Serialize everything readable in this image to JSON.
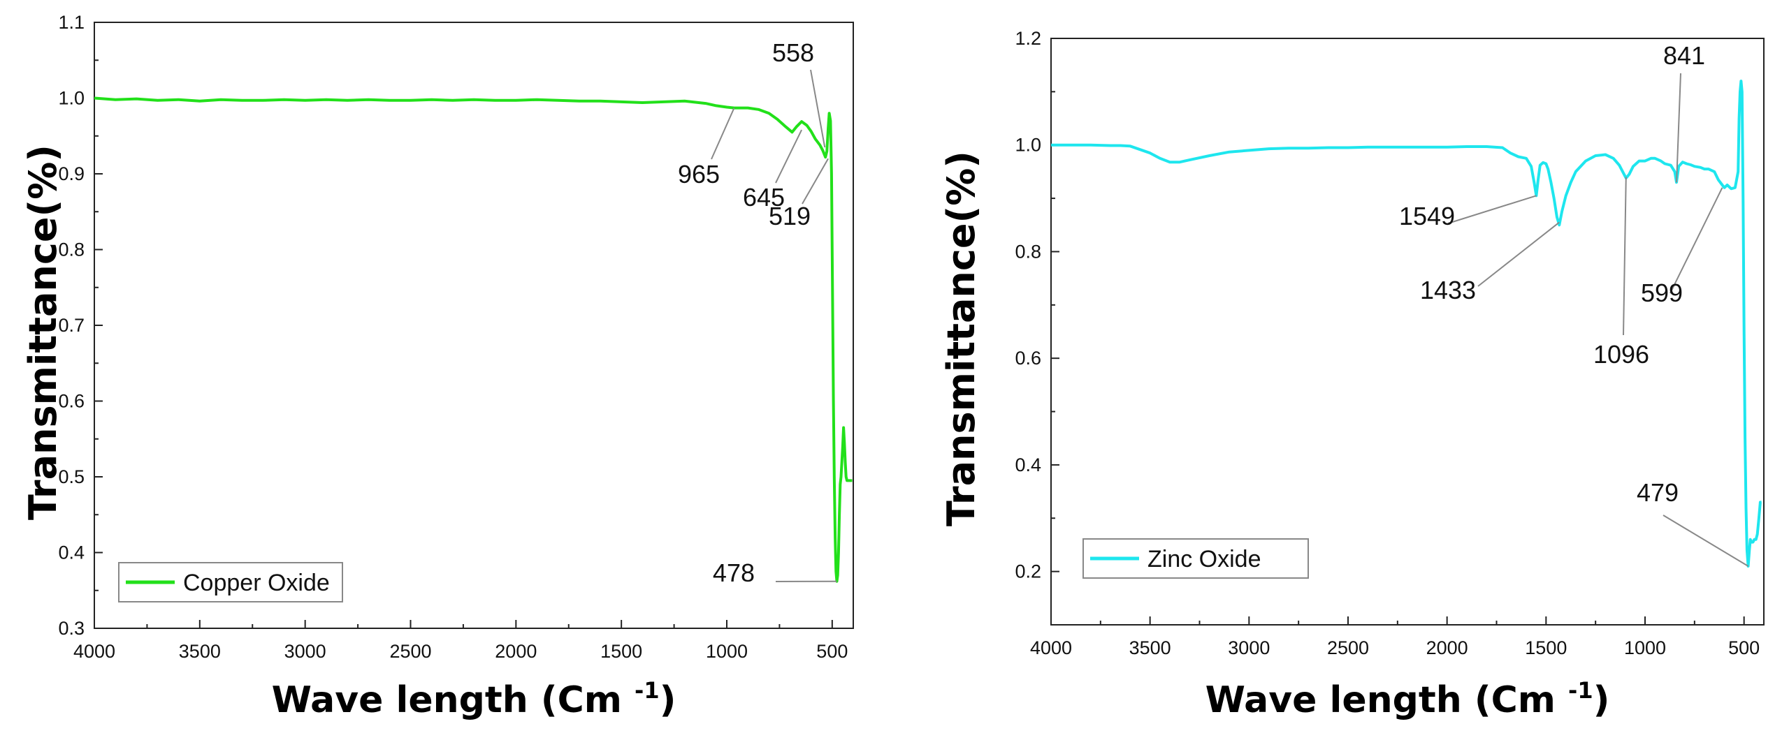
{
  "chart_data": [
    {
      "type": "line",
      "xlabel": "Wave length (Cm",
      "xlabel_sup": "-1",
      "xlabel_close": ")",
      "ylabel": "Transmittance(%)",
      "xlim": [
        4000,
        400
      ],
      "ylim": [
        0.3,
        1.1
      ],
      "xticks": [
        4000,
        3500,
        3000,
        2500,
        2000,
        1500,
        1000,
        500
      ],
      "xtick_labels": [
        "4000",
        "3500",
        "3000",
        "2500",
        "2000",
        "1500",
        "1000",
        "500"
      ],
      "yticks": [
        0.3,
        0.4,
        0.5,
        0.6,
        0.7,
        0.8,
        0.9,
        1.0,
        1.1
      ],
      "ytick_labels": [
        "0.3",
        "0.4",
        "0.5",
        "0.6",
        "0.7",
        "0.8",
        "0.9",
        "1.0",
        "1.1"
      ],
      "grid": false,
      "legend": "bottom-left",
      "series": [
        {
          "name": "Copper Oxide",
          "color": "#22e01a",
          "x": [
            4000,
            3900,
            3800,
            3700,
            3600,
            3500,
            3400,
            3300,
            3200,
            3100,
            3000,
            2900,
            2800,
            2700,
            2600,
            2500,
            2400,
            2300,
            2200,
            2100,
            2000,
            1900,
            1800,
            1700,
            1600,
            1500,
            1400,
            1300,
            1200,
            1100,
            1050,
            1000,
            965,
            900,
            850,
            800,
            760,
            720,
            690,
            670,
            645,
            620,
            600,
            580,
            558,
            545,
            532,
            525,
            519,
            514,
            508,
            503,
            500,
            497,
            494,
            490,
            486,
            482,
            478,
            474,
            470,
            466,
            462,
            458,
            454,
            450,
            446,
            442,
            438,
            434,
            430,
            426,
            422,
            418,
            414,
            410,
            405
          ],
          "y": [
            1.0,
            0.998,
            0.999,
            0.997,
            0.998,
            0.996,
            0.998,
            0.997,
            0.997,
            0.998,
            0.997,
            0.998,
            0.997,
            0.998,
            0.997,
            0.997,
            0.998,
            0.997,
            0.998,
            0.997,
            0.997,
            0.998,
            0.997,
            0.996,
            0.996,
            0.995,
            0.994,
            0.995,
            0.996,
            0.993,
            0.99,
            0.988,
            0.987,
            0.987,
            0.985,
            0.98,
            0.972,
            0.962,
            0.955,
            0.962,
            0.969,
            0.964,
            0.956,
            0.946,
            0.938,
            0.931,
            0.922,
            0.93,
            0.96,
            0.98,
            0.97,
            0.9,
            0.8,
            0.7,
            0.6,
            0.5,
            0.42,
            0.375,
            0.362,
            0.37,
            0.4,
            0.45,
            0.49,
            0.5,
            0.52,
            0.54,
            0.565,
            0.545,
            0.52,
            0.5,
            0.495,
            0.495,
            0.495,
            0.495,
            0.495,
            0.495,
            0.495
          ]
        }
      ],
      "annotations": [
        {
          "text": "558",
          "x": 535,
          "y": 0.935
        },
        {
          "text": "965",
          "x": 965,
          "y": 0.987
        },
        {
          "text": "645",
          "x": 645,
          "y": 0.958
        },
        {
          "text": "519",
          "x": 519,
          "y": 0.92
        },
        {
          "text": "478",
          "x": 478,
          "y": 0.362
        }
      ]
    },
    {
      "type": "line",
      "xlabel": "Wave length (Cm",
      "xlabel_sup": "-1",
      "xlabel_close": ")",
      "ylabel": "Transmittance(%)",
      "xlim": [
        4000,
        400
      ],
      "ylim": [
        0.1,
        1.2
      ],
      "xticks": [
        4000,
        3500,
        3000,
        2500,
        2000,
        1500,
        1000,
        500
      ],
      "xtick_labels": [
        "4000",
        "3500",
        "3000",
        "2500",
        "2000",
        "1500",
        "1000",
        "500"
      ],
      "yticks": [
        0.2,
        0.4,
        0.6,
        0.8,
        1.0,
        1.2
      ],
      "ytick_labels": [
        "0.2",
        "0.4",
        "0.6",
        "0.8",
        "1.0",
        "1.2"
      ],
      "grid": false,
      "legend": "bottom-left",
      "series": [
        {
          "name": "Zinc Oxide",
          "color": "#1ee6ee",
          "x": [
            4000,
            3900,
            3800,
            3700,
            3650,
            3600,
            3500,
            3450,
            3400,
            3350,
            3300,
            3200,
            3100,
            3000,
            2900,
            2800,
            2700,
            2600,
            2500,
            2400,
            2300,
            2200,
            2100,
            2000,
            1900,
            1800,
            1720,
            1680,
            1640,
            1600,
            1575,
            1560,
            1549,
            1540,
            1530,
            1515,
            1500,
            1490,
            1475,
            1460,
            1445,
            1433,
            1420,
            1400,
            1375,
            1350,
            1300,
            1250,
            1200,
            1160,
            1130,
            1110,
            1096,
            1080,
            1060,
            1030,
            1000,
            970,
            950,
            920,
            900,
            870,
            850,
            841,
            830,
            810,
            790,
            770,
            750,
            720,
            700,
            680,
            650,
            630,
            610,
            599,
            585,
            565,
            545,
            530,
            525,
            520,
            515,
            510,
            505,
            500,
            495,
            490,
            485,
            479,
            473,
            468,
            462,
            455,
            448,
            440,
            433,
            425,
            418,
            412
          ],
          "y": [
            1.0,
            1.0,
            1.0,
            0.999,
            0.999,
            0.998,
            0.985,
            0.975,
            0.968,
            0.968,
            0.972,
            0.98,
            0.987,
            0.99,
            0.993,
            0.994,
            0.994,
            0.995,
            0.995,
            0.996,
            0.996,
            0.996,
            0.996,
            0.996,
            0.997,
            0.997,
            0.995,
            0.985,
            0.978,
            0.975,
            0.96,
            0.93,
            0.905,
            0.935,
            0.962,
            0.967,
            0.965,
            0.955,
            0.93,
            0.9,
            0.865,
            0.85,
            0.875,
            0.905,
            0.93,
            0.95,
            0.97,
            0.98,
            0.982,
            0.975,
            0.962,
            0.948,
            0.938,
            0.945,
            0.96,
            0.97,
            0.97,
            0.975,
            0.975,
            0.97,
            0.965,
            0.962,
            0.95,
            0.93,
            0.96,
            0.968,
            0.965,
            0.963,
            0.96,
            0.958,
            0.955,
            0.955,
            0.95,
            0.935,
            0.925,
            0.92,
            0.925,
            0.918,
            0.92,
            0.95,
            1.05,
            1.1,
            1.12,
            1.1,
            0.9,
            0.65,
            0.45,
            0.32,
            0.24,
            0.21,
            0.24,
            0.26,
            0.255,
            0.255,
            0.26,
            0.26,
            0.27,
            0.3,
            0.33,
            0.33
          ]
        }
      ],
      "annotations": [
        {
          "text": "841",
          "x": 841,
          "y": 0.93
        },
        {
          "text": "1549",
          "x": 1549,
          "y": 0.905
        },
        {
          "text": "1433",
          "x": 1433,
          "y": 0.855
        },
        {
          "text": "1096",
          "x": 1096,
          "y": 0.94
        },
        {
          "text": "599",
          "x": 610,
          "y": 0.92
        },
        {
          "text": "479",
          "x": 479,
          "y": 0.21
        }
      ]
    }
  ]
}
